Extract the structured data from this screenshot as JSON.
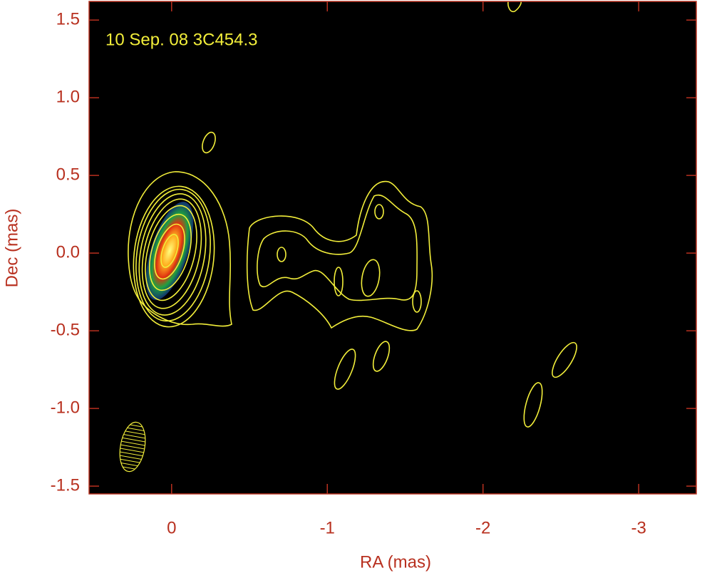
{
  "chart_data": {
    "type": "contour",
    "title": "10 Sep. 08  3C454.3",
    "xlabel": "RA (mas)",
    "ylabel": "Dec (mas)",
    "xlim": [
      0.53,
      -3.37
    ],
    "ylim": [
      -1.55,
      1.62
    ],
    "xticks": [
      0,
      -1,
      -2,
      -3
    ],
    "yticks": [
      1.5,
      {
        "value": 1.0,
        "label": "1.0"
      },
      0.5,
      {
        "value": 0.0,
        "label": "0.0"
      },
      -0.5,
      {
        "value": -1.0,
        "label": "-1.0"
      },
      -1.5
    ]
  }
}
